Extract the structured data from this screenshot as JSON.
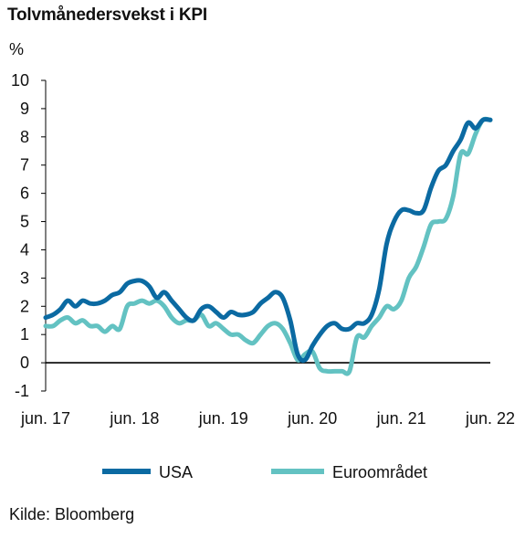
{
  "title": "Tolvmånedersvekst i KPI",
  "unit_label": "%",
  "source": "Kilde: Bloomberg",
  "colors": {
    "usa": "#0b6aa2",
    "euro": "#63c2c2",
    "axis": "#000000"
  },
  "chart_data": {
    "type": "line",
    "title": "Tolvmånedersvekst i KPI",
    "ylabel": "%",
    "ylim": [
      -1,
      10
    ],
    "yticks": [
      -1,
      0,
      1,
      2,
      3,
      4,
      5,
      6,
      7,
      8,
      9,
      10
    ],
    "xlim": [
      0,
      60
    ],
    "xticks": [
      {
        "pos": 0,
        "label": "jun. 17"
      },
      {
        "pos": 12,
        "label": "jun. 18"
      },
      {
        "pos": 24,
        "label": "jun. 19"
      },
      {
        "pos": 36,
        "label": "jun. 20"
      },
      {
        "pos": 48,
        "label": "jun. 21"
      },
      {
        "pos": 60,
        "label": "jun. 22"
      }
    ],
    "grid": false,
    "legend": "bottom",
    "series": [
      {
        "name": "USA",
        "color": "#0b6aa2",
        "values": [
          1.6,
          1.7,
          1.9,
          2.2,
          2.0,
          2.2,
          2.1,
          2.1,
          2.2,
          2.4,
          2.5,
          2.8,
          2.9,
          2.9,
          2.7,
          2.3,
          2.5,
          2.2,
          1.9,
          1.6,
          1.5,
          1.9,
          2.0,
          1.8,
          1.6,
          1.8,
          1.7,
          1.7,
          1.8,
          2.1,
          2.3,
          2.5,
          2.3,
          1.5,
          0.3,
          0.1,
          0.6,
          1.0,
          1.3,
          1.4,
          1.2,
          1.2,
          1.4,
          1.4,
          1.7,
          2.6,
          4.2,
          5.0,
          5.4,
          5.4,
          5.3,
          5.4,
          6.2,
          6.8,
          7.0,
          7.5,
          7.9,
          8.5,
          8.3,
          8.6,
          8.6
        ]
      },
      {
        "name": "Euroområdet",
        "color": "#63c2c2",
        "values": [
          1.3,
          1.3,
          1.5,
          1.6,
          1.4,
          1.5,
          1.3,
          1.3,
          1.1,
          1.3,
          1.2,
          2.0,
          2.1,
          2.2,
          2.1,
          2.2,
          2.0,
          1.6,
          1.4,
          1.5,
          1.5,
          1.7,
          1.3,
          1.4,
          1.2,
          1.0,
          1.0,
          0.8,
          0.7,
          1.0,
          1.3,
          1.4,
          1.2,
          0.7,
          0.1,
          0.3,
          0.4,
          -0.2,
          -0.3,
          -0.3,
          -0.3,
          -0.3,
          0.9,
          0.9,
          1.3,
          1.6,
          2.0,
          1.9,
          2.2,
          3.0,
          3.4,
          4.1,
          4.9,
          5.0,
          5.1,
          5.9,
          7.4,
          7.4,
          8.1,
          8.6,
          8.6
        ]
      }
    ]
  }
}
